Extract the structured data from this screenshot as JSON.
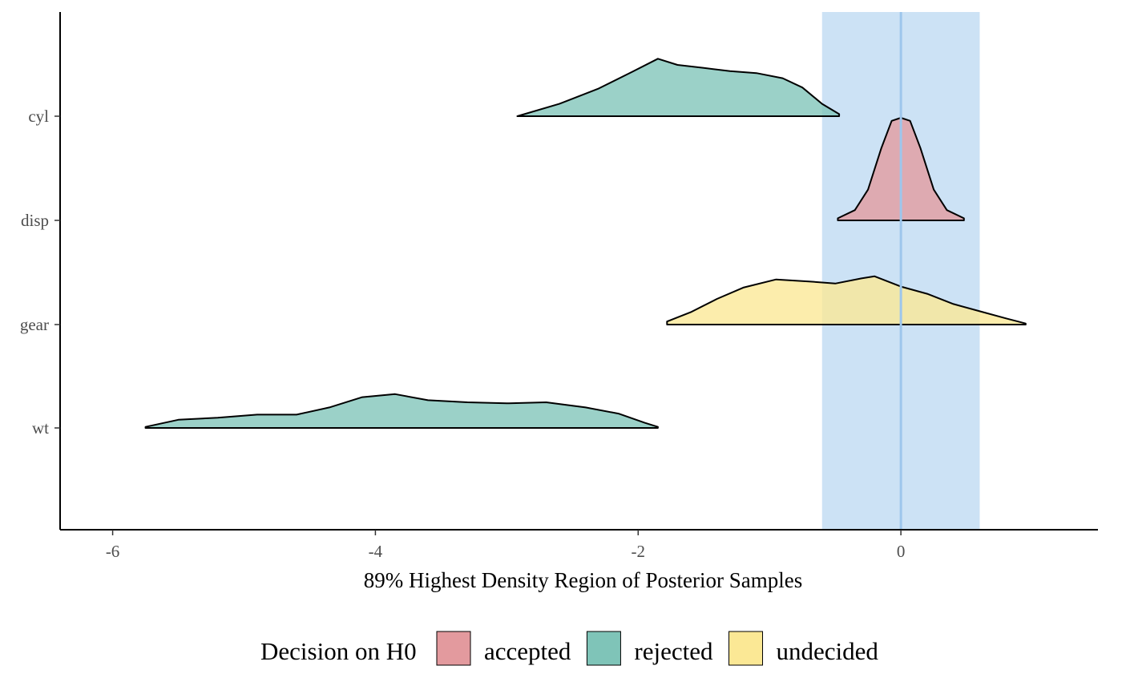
{
  "chart_data": {
    "type": "ridgeline",
    "title": "",
    "xlabel": "89% Highest Density Region of Posterior Samples",
    "ylabel": "",
    "xlim": [
      -6.4,
      1.5
    ],
    "x_ticks": [
      -6,
      -4,
      -2,
      0
    ],
    "x_tick_labels": [
      "-6",
      "-4",
      "-2",
      "0"
    ],
    "categories": [
      "cyl",
      "disp",
      "gear",
      "wt"
    ],
    "rope": {
      "low": -0.6,
      "high": 0.6,
      "color": "#cce2f5"
    },
    "reference_line": {
      "x": 0,
      "color": "#9dc6ec"
    },
    "grid": false,
    "legend_position": "bottom",
    "legend": {
      "title": "Decision on H0",
      "items": [
        {
          "label": "accepted",
          "color": "#e39a9e"
        },
        {
          "label": "rejected",
          "color": "#7fc4b8"
        },
        {
          "label": "undecided",
          "color": "#fbe895"
        }
      ]
    },
    "series": [
      {
        "category": "cyl",
        "decision": "rejected",
        "color": "#7fc4b8",
        "density": [
          [
            -2.92,
            0
          ],
          [
            -2.6,
            0.12
          ],
          [
            -2.3,
            0.27
          ],
          [
            -2.05,
            0.43
          ],
          [
            -1.85,
            0.56
          ],
          [
            -1.7,
            0.5
          ],
          [
            -1.5,
            0.47
          ],
          [
            -1.3,
            0.44
          ],
          [
            -1.1,
            0.42
          ],
          [
            -0.9,
            0.37
          ],
          [
            -0.75,
            0.28
          ],
          [
            -0.6,
            0.12
          ],
          [
            -0.47,
            0.02
          ]
        ]
      },
      {
        "category": "disp",
        "decision": "accepted",
        "color": "#e39a9e",
        "density": [
          [
            -0.48,
            0.02
          ],
          [
            -0.35,
            0.1
          ],
          [
            -0.25,
            0.3
          ],
          [
            -0.15,
            0.7
          ],
          [
            -0.07,
            0.97
          ],
          [
            0,
            1.0
          ],
          [
            0.07,
            0.97
          ],
          [
            0.15,
            0.7
          ],
          [
            0.25,
            0.3
          ],
          [
            0.35,
            0.1
          ],
          [
            0.48,
            0.02
          ]
        ]
      },
      {
        "category": "gear",
        "decision": "undecided",
        "color": "#fbe895",
        "density": [
          [
            -1.78,
            0.03
          ],
          [
            -1.6,
            0.12
          ],
          [
            -1.4,
            0.25
          ],
          [
            -1.2,
            0.36
          ],
          [
            -0.95,
            0.44
          ],
          [
            -0.7,
            0.42
          ],
          [
            -0.5,
            0.4
          ],
          [
            -0.3,
            0.45
          ],
          [
            -0.2,
            0.47
          ],
          [
            0,
            0.37
          ],
          [
            0.2,
            0.3
          ],
          [
            0.4,
            0.2
          ],
          [
            0.6,
            0.13
          ],
          [
            0.8,
            0.06
          ],
          [
            0.95,
            0.01
          ]
        ]
      },
      {
        "category": "wt",
        "decision": "rejected",
        "color": "#7fc4b8",
        "density": [
          [
            -5.75,
            0.01
          ],
          [
            -5.5,
            0.08
          ],
          [
            -5.2,
            0.1
          ],
          [
            -4.9,
            0.13
          ],
          [
            -4.6,
            0.13
          ],
          [
            -4.35,
            0.2
          ],
          [
            -4.1,
            0.3
          ],
          [
            -3.85,
            0.33
          ],
          [
            -3.6,
            0.27
          ],
          [
            -3.3,
            0.25
          ],
          [
            -3.0,
            0.24
          ],
          [
            -2.7,
            0.25
          ],
          [
            -2.4,
            0.2
          ],
          [
            -2.15,
            0.14
          ],
          [
            -1.95,
            0.05
          ],
          [
            -1.85,
            0.01
          ]
        ]
      }
    ]
  }
}
